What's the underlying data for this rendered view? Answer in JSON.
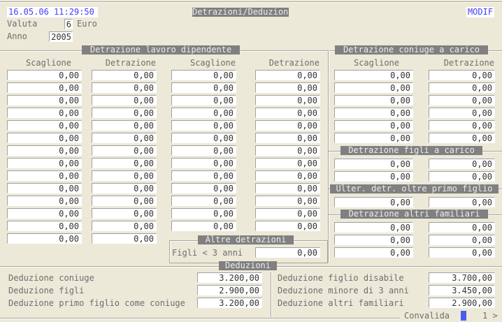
{
  "header": {
    "datetime": "16.05.06 11:29:50",
    "title": "Detrazioni/Deduzioni",
    "mode": "MODIF",
    "mode_color": "#4040ff",
    "valuta_label": "Valuta",
    "valuta_value": "6",
    "valuta_currency": "Euro",
    "anno_label": "Anno",
    "anno_value": "2005"
  },
  "lavoro": {
    "title": "Detrazione lavoro dipendente",
    "headers": [
      "Scaglione",
      "Detrazione",
      "Scaglione",
      "Detrazione"
    ],
    "col1": [
      "0,00",
      "0,00",
      "0,00",
      "0,00",
      "0,00",
      "0,00",
      "0,00",
      "0,00",
      "0,00",
      "0,00",
      "0,00",
      "0,00",
      "0,00",
      "0,00"
    ],
    "col2": [
      "0,00",
      "0,00",
      "0,00",
      "0,00",
      "0,00",
      "0,00",
      "0,00",
      "0,00",
      "0,00",
      "0,00",
      "0,00",
      "0,00",
      "0,00",
      "0,00"
    ],
    "col3": [
      "0,00",
      "0,00",
      "0,00",
      "0,00",
      "0,00",
      "0,00",
      "0,00",
      "0,00",
      "0,00",
      "0,00",
      "0,00",
      "0,00",
      "0,00"
    ],
    "col4": [
      "0,00",
      "0,00",
      "0,00",
      "0,00",
      "0,00",
      "0,00",
      "0,00",
      "0,00",
      "0,00",
      "0,00",
      "0,00",
      "0,00",
      "0,00"
    ]
  },
  "altre": {
    "title": "Altre detrazioni",
    "figli_label": "Figli < 3 anni",
    "figli_value": "0,00"
  },
  "coniuge": {
    "title": "Detrazione coniuge a carico",
    "headers": [
      "Scaglione",
      "Detrazione"
    ],
    "col1": [
      "0,00",
      "0,00",
      "0,00",
      "0,00",
      "0,00",
      "0,00"
    ],
    "col2": [
      "0,00",
      "0,00",
      "0,00",
      "0,00",
      "0,00",
      "0,00"
    ]
  },
  "figli": {
    "title": "Detrazione figli a carico",
    "col1": [
      "0,00",
      "0,00"
    ],
    "col2": [
      "0,00",
      "0,00"
    ]
  },
  "ulter": {
    "title": "Ulter. detr. oltre primo figlio",
    "col1": [
      "0,00"
    ],
    "col2": [
      "0,00"
    ]
  },
  "altri": {
    "title": "Detrazione altri familiari",
    "col1": [
      "0,00",
      "0,00",
      "0,00"
    ],
    "col2": [
      "0,00",
      "0,00",
      "0,00"
    ]
  },
  "deduzioni": {
    "title": "Deduzioni",
    "items": [
      {
        "label": "Deduzione coniuge",
        "value": "3.200,00"
      },
      {
        "label": "Deduzione figli",
        "value": "2.900,00"
      },
      {
        "label": "Deduzione primo figlio come coniuge",
        "value": "3.200,00"
      },
      {
        "label": "Deduzione figlio disabile",
        "value": "3.700,00"
      },
      {
        "label": "Deduzione minore di 3 anni",
        "value": "3.450,00"
      },
      {
        "label": "Deduzione altri familiari",
        "value": "2.900,00"
      }
    ]
  },
  "footer": {
    "convalida": "Convalida",
    "page": "1 >",
    "indicator_color": "#4a5cf0"
  }
}
